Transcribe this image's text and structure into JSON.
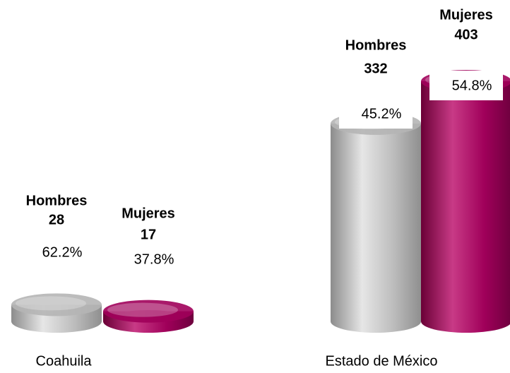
{
  "chart_data": {
    "type": "cylinder-bar",
    "categories": [
      "Coahuila",
      "Estado de México"
    ],
    "series": [
      {
        "name": "Hombres",
        "color": "#b5b5b5",
        "values": [
          28,
          332
        ],
        "percent": [
          62.2,
          45.2
        ],
        "percent_labels": [
          "62.2%",
          "45.2%"
        ]
      },
      {
        "name": "Mujeres",
        "color": "#a0005a",
        "values": [
          17,
          403
        ],
        "percent": [
          37.8,
          54.8
        ],
        "percent_labels": [
          "37.8%",
          "54.8%"
        ]
      }
    ]
  }
}
